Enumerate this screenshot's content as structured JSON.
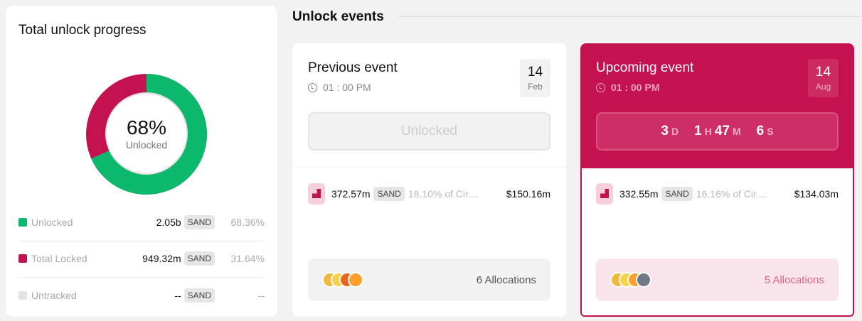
{
  "progress": {
    "title": "Total unlock progress",
    "percent_label": "68%",
    "center_label": "Unlocked",
    "unlocked_fraction": 0.6836,
    "colors": {
      "unlocked": "#0bb86c",
      "locked": "#c41150",
      "untracked": "#e3e3e3"
    },
    "rows": [
      {
        "label": "Unlocked",
        "value": "2.05b",
        "unit": "SAND",
        "pct": "68.36%",
        "color": "#0bb86c"
      },
      {
        "label": "Total Locked",
        "value": "949.32m",
        "unit": "SAND",
        "pct": "31.64%",
        "color": "#c41150"
      },
      {
        "label": "Untracked",
        "value": "--",
        "unit": "SAND",
        "pct": "--",
        "color": "#e3e3e3"
      }
    ]
  },
  "events": {
    "title": "Unlock events",
    "previous": {
      "title": "Previous event",
      "time": "01 : 00 PM",
      "day": "14",
      "month": "Feb",
      "status": "Unlocked",
      "amount": "372.57m",
      "unit": "SAND",
      "pct": "18.10% of Cir....",
      "usd": "$150.16m",
      "allocations": "6 Allocations",
      "alloc_colors": [
        "#f0b93c",
        "#f5d24a",
        "#e8661a",
        "#ff9f2e"
      ]
    },
    "upcoming": {
      "title": "Upcoming event",
      "time": "01 : 00 PM",
      "day": "14",
      "month": "Aug",
      "countdown": {
        "d": "3",
        "d_unit": "D",
        "h": "1",
        "h_unit": "H",
        "m": "47",
        "m_unit": "M",
        "s": "6",
        "s_unit": "S"
      },
      "amount": "332.55m",
      "unit": "SAND",
      "pct": "16.16% of Cir....",
      "usd": "$134.03m",
      "allocations": "5 Allocations",
      "alloc_colors": [
        "#f0b93c",
        "#f5d24a",
        "#ff9f2e",
        "#6f7a87"
      ]
    }
  }
}
